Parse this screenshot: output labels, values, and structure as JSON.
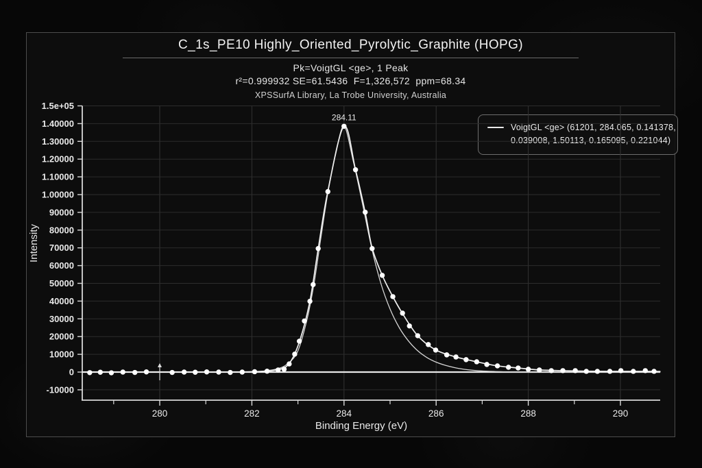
{
  "header": {
    "title": "C_1s_PE10 Highly_Oriented_Pyrolytic_Graphite (HOPG)",
    "fit_model": "Pk=VoigtGL <ge>, 1 Peak",
    "fit_stats": "r²=0.999932 SE=61.5436  F=1,326,572  ppm=68.34",
    "library": "XPSSurfA Library, La Trobe University, Australia"
  },
  "chart_data": {
    "type": "line+scatter",
    "title": "C_1s_PE10 Highly_Oriented_Pyrolytic_Graphite (HOPG)",
    "xlabel": "Binding Energy (eV)",
    "ylabel": "Intensity",
    "xlim": [
      278.32,
      290.86
    ],
    "ylim": [
      -15400,
      150300
    ],
    "grid": true,
    "x_major_ticks": [
      280,
      282,
      284,
      286,
      288,
      290
    ],
    "x_minor_ticks": [
      279,
      281,
      283,
      285,
      287,
      289
    ],
    "y_ticks": [
      {
        "v": 150000,
        "label": "1.5e+05"
      },
      {
        "v": 140000,
        "label": "1.40000"
      },
      {
        "v": 130000,
        "label": "1.30000"
      },
      {
        "v": 120000,
        "label": "1.20000"
      },
      {
        "v": 110000,
        "label": "1.10000"
      },
      {
        "v": 100000,
        "label": "1.00000"
      },
      {
        "v": 90000,
        "label": "90000"
      },
      {
        "v": 80000,
        "label": "80000"
      },
      {
        "v": 70000,
        "label": "70000"
      },
      {
        "v": 60000,
        "label": "60000"
      },
      {
        "v": 50000,
        "label": "50000"
      },
      {
        "v": 40000,
        "label": "40000"
      },
      {
        "v": 30000,
        "label": "30000"
      },
      {
        "v": 20000,
        "label": "20000"
      },
      {
        "v": 10000,
        "label": "10000"
      },
      {
        "v": 0,
        "label": "0"
      },
      {
        "v": -10000,
        "label": "-10000"
      }
    ],
    "peak_annotation": {
      "x": 284.0,
      "y": 138500,
      "label": "284.11"
    },
    "baseline_marker_x": 280,
    "legend": {
      "position": "upper right",
      "line1": "VoigtGL <ge> (61201, 284.065, 0.141378,",
      "line2": "0.039008, 1.50113, 0.165095, 0.221044)"
    },
    "series": [
      {
        "name": "data",
        "kind": "scatter",
        "points": [
          [
            278.48,
            -300
          ],
          [
            278.71,
            -100
          ],
          [
            278.95,
            -400
          ],
          [
            279.2,
            0
          ],
          [
            279.46,
            -200
          ],
          [
            279.71,
            100
          ],
          [
            280.27,
            -200
          ],
          [
            280.53,
            0
          ],
          [
            280.77,
            -100
          ],
          [
            281.02,
            100
          ],
          [
            281.28,
            0
          ],
          [
            281.53,
            -200
          ],
          [
            281.79,
            0
          ],
          [
            282.06,
            200
          ],
          [
            282.33,
            500
          ],
          [
            282.57,
            1200
          ],
          [
            282.7,
            1600
          ],
          [
            282.81,
            4600
          ],
          [
            282.93,
            10100
          ],
          [
            283.03,
            17400
          ],
          [
            283.14,
            28800
          ],
          [
            283.26,
            39900
          ],
          [
            283.33,
            49300
          ],
          [
            283.44,
            69600
          ],
          [
            283.65,
            101700
          ],
          [
            284.0,
            138500
          ],
          [
            284.25,
            114000
          ],
          [
            284.46,
            90100
          ],
          [
            284.61,
            69600
          ],
          [
            284.83,
            54500
          ],
          [
            285.06,
            42500
          ],
          [
            285.27,
            33200
          ],
          [
            285.42,
            26000
          ],
          [
            285.6,
            20500
          ],
          [
            285.83,
            15500
          ],
          [
            285.99,
            12400
          ],
          [
            286.23,
            9700
          ],
          [
            286.43,
            8500
          ],
          [
            286.65,
            7000
          ],
          [
            286.88,
            5800
          ],
          [
            287.1,
            4300
          ],
          [
            287.33,
            3500
          ],
          [
            287.57,
            2700
          ],
          [
            287.78,
            2300
          ],
          [
            288.0,
            1600
          ],
          [
            288.24,
            1200
          ],
          [
            288.5,
            800
          ],
          [
            288.75,
            800
          ],
          [
            289.02,
            800
          ],
          [
            289.26,
            400
          ],
          [
            289.5,
            400
          ],
          [
            289.77,
            400
          ],
          [
            290.01,
            800
          ],
          [
            290.28,
            400
          ],
          [
            290.54,
            800
          ],
          [
            290.73,
            400
          ]
        ]
      },
      {
        "name": "fit_envelope",
        "kind": "line",
        "points": [
          [
            278.32,
            0
          ],
          [
            279.5,
            0
          ],
          [
            281.0,
            0
          ],
          [
            282.0,
            200
          ],
          [
            282.55,
            1300
          ],
          [
            282.81,
            4800
          ],
          [
            283.03,
            17000
          ],
          [
            283.26,
            40000
          ],
          [
            283.44,
            69500
          ],
          [
            283.65,
            102000
          ],
          [
            284.0,
            138500
          ],
          [
            284.25,
            114000
          ],
          [
            284.46,
            90000
          ],
          [
            284.61,
            70000
          ],
          [
            284.83,
            54500
          ],
          [
            285.06,
            42500
          ],
          [
            285.27,
            33000
          ],
          [
            285.6,
            20500
          ],
          [
            285.99,
            12500
          ],
          [
            286.43,
            8500
          ],
          [
            286.88,
            5800
          ],
          [
            287.33,
            3500
          ],
          [
            287.78,
            2300
          ],
          [
            288.24,
            1200
          ],
          [
            288.75,
            800
          ],
          [
            289.26,
            500
          ],
          [
            289.77,
            400
          ],
          [
            290.28,
            400
          ],
          [
            290.86,
            350
          ]
        ]
      },
      {
        "name": "VoigtGL <ge>",
        "kind": "line",
        "points": [
          [
            278.32,
            0
          ],
          [
            280.0,
            0
          ],
          [
            281.5,
            0
          ],
          [
            282.0,
            200
          ],
          [
            282.3,
            700
          ],
          [
            282.6,
            2200
          ],
          [
            282.8,
            5200
          ],
          [
            283.0,
            12000
          ],
          [
            283.2,
            30000
          ],
          [
            283.35,
            50000
          ],
          [
            283.5,
            76000
          ],
          [
            283.65,
            101000
          ],
          [
            283.82,
            123000
          ],
          [
            284.0,
            138500
          ],
          [
            284.2,
            119000
          ],
          [
            284.4,
            95000
          ],
          [
            284.6,
            70000
          ],
          [
            284.8,
            50000
          ],
          [
            285.0,
            35500
          ],
          [
            285.2,
            25000
          ],
          [
            285.4,
            17500
          ],
          [
            285.6,
            12000
          ],
          [
            285.8,
            8200
          ],
          [
            286.0,
            5600
          ],
          [
            286.2,
            3800
          ],
          [
            286.4,
            2500
          ],
          [
            286.6,
            1600
          ],
          [
            286.8,
            1000
          ],
          [
            287.0,
            600
          ],
          [
            287.3,
            300
          ],
          [
            287.6,
            100
          ],
          [
            288.0,
            0
          ],
          [
            290.86,
            0
          ]
        ]
      }
    ],
    "colors": {
      "background": "#0d0d0d",
      "grid": "#2d2d2d",
      "axis": "#d9d9d9",
      "curve": "#f0f0f0",
      "component": "#d6d6d6",
      "points": "#ffffff",
      "text": "#e9e9e9"
    }
  }
}
